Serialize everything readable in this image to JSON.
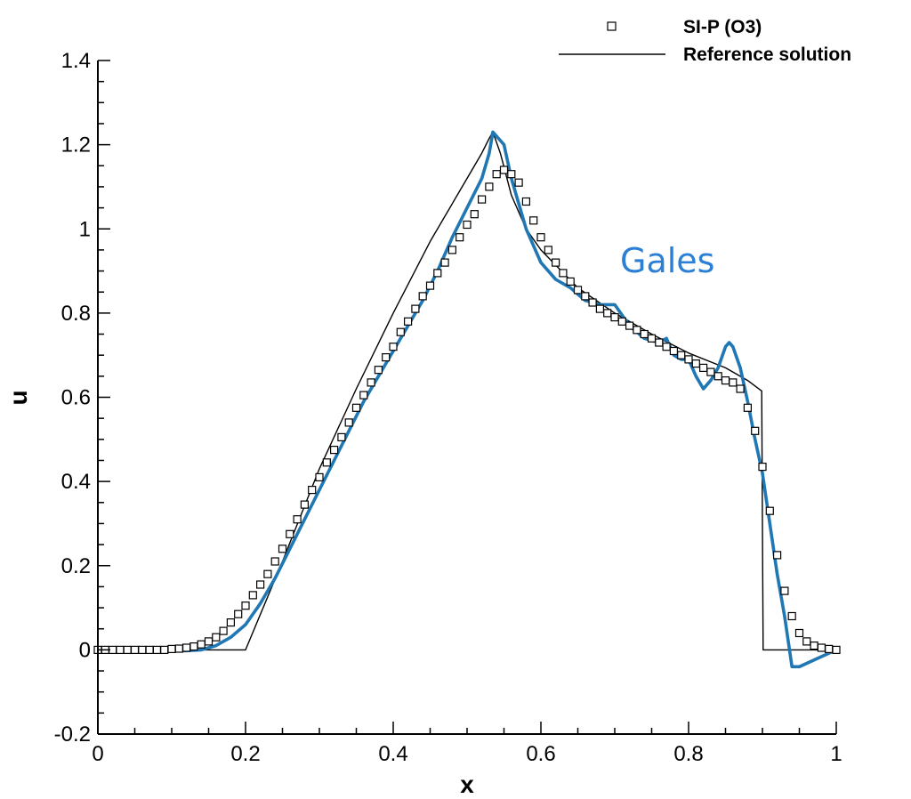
{
  "chart_data": {
    "type": "line",
    "xlabel": "x",
    "ylabel": "u",
    "xlim": [
      0,
      1
    ],
    "ylim": [
      -0.2,
      1.4
    ],
    "x_ticks": [
      "0",
      "0.2",
      "0.4",
      "0.6",
      "0.8",
      "1"
    ],
    "y_ticks": [
      "-0.2",
      "0",
      "0.2",
      "0.4",
      "0.6",
      "0.8",
      "1",
      "1.2",
      "1.4"
    ],
    "grid": false,
    "legend_position": "top-right",
    "annotation": {
      "text": "Gales",
      "color": "#2b7fd4"
    },
    "series": [
      {
        "name": "SI-P (O3)",
        "style": "open-square-markers",
        "color": "#000000",
        "x": [
          0.0,
          0.01,
          0.02,
          0.03,
          0.04,
          0.05,
          0.06,
          0.07,
          0.08,
          0.09,
          0.1,
          0.11,
          0.12,
          0.13,
          0.14,
          0.15,
          0.16,
          0.17,
          0.18,
          0.19,
          0.2,
          0.21,
          0.22,
          0.23,
          0.24,
          0.25,
          0.26,
          0.27,
          0.28,
          0.29,
          0.3,
          0.31,
          0.32,
          0.33,
          0.34,
          0.35,
          0.36,
          0.37,
          0.38,
          0.39,
          0.4,
          0.41,
          0.42,
          0.43,
          0.44,
          0.45,
          0.46,
          0.47,
          0.48,
          0.49,
          0.5,
          0.51,
          0.52,
          0.53,
          0.54,
          0.55,
          0.56,
          0.57,
          0.58,
          0.59,
          0.6,
          0.61,
          0.62,
          0.63,
          0.64,
          0.65,
          0.66,
          0.67,
          0.68,
          0.69,
          0.7,
          0.71,
          0.72,
          0.73,
          0.74,
          0.75,
          0.76,
          0.77,
          0.78,
          0.79,
          0.8,
          0.81,
          0.82,
          0.83,
          0.84,
          0.85,
          0.86,
          0.87,
          0.88,
          0.89,
          0.9,
          0.91,
          0.92,
          0.93,
          0.94,
          0.95,
          0.96,
          0.97,
          0.98,
          0.99,
          1.0
        ],
        "y": [
          0.0,
          0.0,
          0.0,
          0.0,
          0.0,
          0.0,
          0.0,
          0.0,
          0.0,
          0.0,
          0.002,
          0.003,
          0.005,
          0.008,
          0.013,
          0.02,
          0.03,
          0.045,
          0.065,
          0.085,
          0.105,
          0.13,
          0.155,
          0.18,
          0.21,
          0.24,
          0.275,
          0.31,
          0.345,
          0.38,
          0.41,
          0.445,
          0.475,
          0.505,
          0.54,
          0.575,
          0.605,
          0.635,
          0.665,
          0.695,
          0.72,
          0.755,
          0.78,
          0.81,
          0.84,
          0.865,
          0.895,
          0.92,
          0.95,
          0.98,
          1.01,
          1.035,
          1.07,
          1.1,
          1.13,
          1.14,
          1.13,
          1.11,
          1.065,
          1.02,
          0.98,
          0.95,
          0.92,
          0.895,
          0.875,
          0.855,
          0.84,
          0.825,
          0.81,
          0.8,
          0.79,
          0.78,
          0.77,
          0.76,
          0.75,
          0.74,
          0.73,
          0.72,
          0.71,
          0.7,
          0.69,
          0.68,
          0.67,
          0.66,
          0.65,
          0.64,
          0.635,
          0.62,
          0.575,
          0.52,
          0.435,
          0.33,
          0.225,
          0.14,
          0.08,
          0.04,
          0.02,
          0.01,
          0.005,
          0.002,
          0.0
        ]
      },
      {
        "name": "Reference solution",
        "style": "thin-line",
        "color": "#000000",
        "x": [
          0.0,
          0.1,
          0.15,
          0.18,
          0.195,
          0.2,
          0.25,
          0.3,
          0.35,
          0.4,
          0.45,
          0.5,
          0.52,
          0.53,
          0.535,
          0.545,
          0.56,
          0.58,
          0.6,
          0.65,
          0.7,
          0.75,
          0.8,
          0.85,
          0.88,
          0.899,
          0.9,
          0.901,
          1.0
        ],
        "y": [
          0.0,
          0.0,
          0.0,
          0.0,
          0.0,
          0.0,
          0.21,
          0.43,
          0.62,
          0.8,
          0.97,
          1.12,
          1.18,
          1.215,
          1.23,
          1.18,
          1.08,
          1.0,
          0.95,
          0.86,
          0.8,
          0.75,
          0.705,
          0.67,
          0.64,
          0.615,
          0.3,
          0.0,
          0.0
        ]
      },
      {
        "name": "",
        "style": "thick-line",
        "color": "#1f77b4",
        "x": [
          0.0,
          0.1,
          0.12,
          0.14,
          0.16,
          0.18,
          0.2,
          0.22,
          0.24,
          0.26,
          0.28,
          0.3,
          0.32,
          0.34,
          0.36,
          0.38,
          0.4,
          0.42,
          0.44,
          0.46,
          0.48,
          0.5,
          0.52,
          0.53,
          0.535,
          0.54,
          0.55,
          0.56,
          0.58,
          0.6,
          0.62,
          0.64,
          0.66,
          0.68,
          0.7,
          0.72,
          0.74,
          0.76,
          0.77,
          0.78,
          0.79,
          0.8,
          0.81,
          0.82,
          0.83,
          0.84,
          0.85,
          0.855,
          0.86,
          0.87,
          0.88,
          0.89,
          0.9,
          0.91,
          0.92,
          0.93,
          0.94,
          0.95,
          1.0
        ],
        "y": [
          -0.003,
          -0.003,
          -0.002,
          0.0,
          0.01,
          0.03,
          0.06,
          0.11,
          0.17,
          0.24,
          0.31,
          0.38,
          0.45,
          0.52,
          0.59,
          0.65,
          0.71,
          0.77,
          0.83,
          0.9,
          0.98,
          1.05,
          1.12,
          1.18,
          1.23,
          1.22,
          1.2,
          1.12,
          1.0,
          0.92,
          0.88,
          0.86,
          0.83,
          0.82,
          0.82,
          0.77,
          0.74,
          0.73,
          0.74,
          0.7,
          0.69,
          0.69,
          0.65,
          0.62,
          0.64,
          0.67,
          0.72,
          0.73,
          0.72,
          0.67,
          0.59,
          0.5,
          0.42,
          0.3,
          0.18,
          0.08,
          -0.04,
          -0.04,
          0.0
        ]
      }
    ]
  }
}
